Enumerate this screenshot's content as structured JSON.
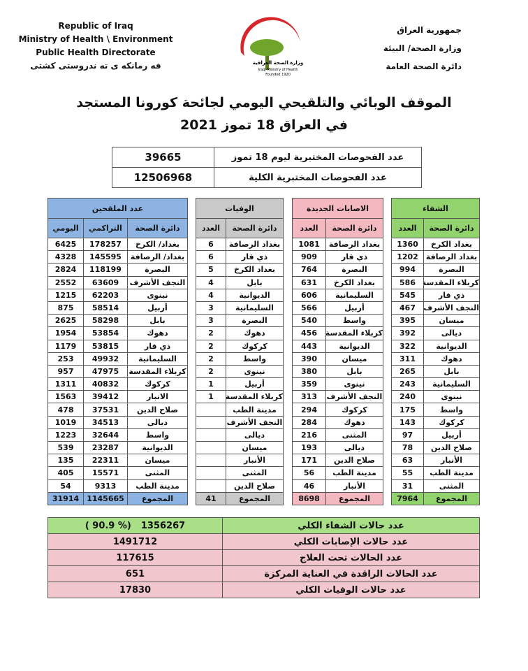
{
  "header": {
    "left": [
      "Republic of Iraq",
      "Ministry of Health \\ Environment",
      "Public Health Directorate",
      "فه رمانكه ى ته ندروستى كشتى"
    ],
    "right": [
      "جمهورية العراق",
      "وزارة الصحة/ البيئة",
      "دائرة الصحة العامة"
    ],
    "logo_text": [
      "وزارة الصحة العراقية",
      "Iraqi Ministry of Health",
      "Founded 1920"
    ]
  },
  "title": [
    "الموقف الوبائي والتلقيحي اليومي لجائحة كورونا المستجد",
    "في العراق 18 تموز 2021"
  ],
  "tests": {
    "rows": [
      [
        "عدد الفحوصات المختبرية ليوم 18 تموز",
        39665
      ],
      [
        "عدد الفحوصات المختبرية الكلية",
        12506968
      ]
    ]
  },
  "tables": [
    {
      "title": "الشفاء",
      "columns": [
        "دائرة الصحة",
        "العدد"
      ],
      "rows": [
        [
          "بغداد الكرخ",
          1360
        ],
        [
          "بغداد الرصافة",
          1202
        ],
        [
          "البصرة",
          994
        ],
        [
          "كربلاء المقدسة",
          586
        ],
        [
          "ذي قار",
          545
        ],
        [
          "النجف الأشرف",
          467
        ],
        [
          "ميسان",
          395
        ],
        [
          "ديالى",
          392
        ],
        [
          "الديوانية",
          322
        ],
        [
          "دهوك",
          311
        ],
        [
          "بابل",
          265
        ],
        [
          "السليمانية",
          243
        ],
        [
          "نينوى",
          240
        ],
        [
          "واسط",
          175
        ],
        [
          "كركوك",
          143
        ],
        [
          "أربيل",
          97
        ],
        [
          "صلاح الدين",
          78
        ],
        [
          "الأنبار",
          63
        ],
        [
          "مدينة الطب",
          55
        ],
        [
          "المثنى",
          31
        ],
        [
          "المجموع",
          7964
        ]
      ]
    },
    {
      "title": "الاصابات الجديدة",
      "columns": [
        "دائرة الصحة",
        "العدد"
      ],
      "rows": [
        [
          "بغداد الرصافة",
          1081
        ],
        [
          "ذي قار",
          909
        ],
        [
          "البصرة",
          764
        ],
        [
          "بغداد الكرخ",
          631
        ],
        [
          "السليمانية",
          606
        ],
        [
          "أربيل",
          566
        ],
        [
          "واسط",
          540
        ],
        [
          "كربلاء المقدسة",
          456
        ],
        [
          "الديوانية",
          443
        ],
        [
          "ميسان",
          390
        ],
        [
          "بابل",
          380
        ],
        [
          "نينوى",
          359
        ],
        [
          "النجف الأشرف",
          313
        ],
        [
          "كركوك",
          294
        ],
        [
          "دهوك",
          284
        ],
        [
          "المثنى",
          216
        ],
        [
          "ديالى",
          193
        ],
        [
          "صلاح الدين",
          171
        ],
        [
          "مدينة الطب",
          56
        ],
        [
          "الأنبار",
          46
        ],
        [
          "المجموع",
          8698
        ]
      ]
    },
    {
      "title": "الوفيات",
      "columns": [
        "دائرة الصحة",
        "العدد"
      ],
      "rows": [
        [
          "بغداد الرصافة",
          6
        ],
        [
          "ذي قار",
          6
        ],
        [
          "بغداد الكرخ",
          5
        ],
        [
          "بابل",
          4
        ],
        [
          "الديوانية",
          4
        ],
        [
          "السليمانية",
          3
        ],
        [
          "البصرة",
          3
        ],
        [
          "دهوك",
          2
        ],
        [
          "كركوك",
          2
        ],
        [
          "واسط",
          2
        ],
        [
          "نينوى",
          2
        ],
        [
          "أربيل",
          1
        ],
        [
          "كربلاء المقدسة",
          1
        ],
        [
          "مدينة الطب"
        ],
        [
          "النجف الأشرف"
        ],
        [
          "ديالى"
        ],
        [
          "ميسان"
        ],
        [
          "الأنبار"
        ],
        [
          "المثنى"
        ],
        [
          "صلاح الدين"
        ],
        [
          "المجموع",
          41
        ]
      ]
    },
    {
      "title": "عدد الملقحين",
      "columns": [
        "دائرة الصحة",
        "التراكمي",
        "اليومي"
      ],
      "rows": [
        [
          "بغداد/ الكرخ",
          178257,
          6425
        ],
        [
          "بغداد/ الرصافة",
          145595,
          4328
        ],
        [
          "البصرة",
          118199,
          2824
        ],
        [
          "النجف الأشرف",
          63609,
          2552
        ],
        [
          "نينوى",
          62203,
          1215
        ],
        [
          "أربيل",
          58514,
          875
        ],
        [
          "بابل",
          58298,
          2625
        ],
        [
          "دهوك",
          53854,
          1954
        ],
        [
          "ذي قار",
          53815,
          1179
        ],
        [
          "السليمانية",
          49932,
          253
        ],
        [
          "كربلاء المقدسة",
          47975,
          957
        ],
        [
          "كركوك",
          40832,
          1311
        ],
        [
          "الانبار",
          39412,
          1563
        ],
        [
          "صلاح الدين",
          37531,
          478
        ],
        [
          "ديالى",
          34513,
          1019
        ],
        [
          "واسط",
          32644,
          1223
        ],
        [
          "الديوانية",
          23287,
          539
        ],
        [
          "ميسان",
          22311,
          135
        ],
        [
          "المثنى",
          15571,
          405
        ],
        [
          "مدينة الطب",
          9313,
          54
        ],
        [
          "المجموع",
          1145665,
          31914
        ]
      ]
    }
  ],
  "summary": {
    "rows": [
      [
        "عدد حالات الشفاء الكلي",
        "1356267",
        "( 90.9 %)"
      ],
      [
        "عدد حالات الإصابات الكلي",
        1491712
      ],
      [
        "عدد الحالات تحت العلاج",
        117615
      ],
      [
        "عدد الحالات الراقدة في العناية المركزة",
        651
      ],
      [
        "عدد حالات الوفيات الكلي",
        17830
      ]
    ]
  }
}
